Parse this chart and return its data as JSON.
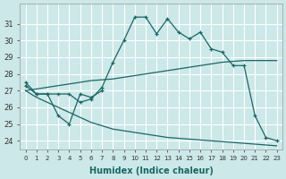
{
  "xlabel": "Humidex (Indice chaleur)",
  "background_color": "#cce8e8",
  "grid_color": "#ffffff",
  "line_color": "#1a6666",
  "ylim": [
    23.5,
    32.2
  ],
  "yticks": [
    24,
    25,
    26,
    27,
    28,
    29,
    30,
    31
  ],
  "xlim": [
    -0.5,
    23.5
  ],
  "line_main_x": [
    0,
    1,
    2,
    3,
    4,
    5,
    6,
    7,
    8,
    9,
    10,
    11,
    12,
    13,
    14,
    15,
    16,
    17,
    18,
    19,
    20,
    21,
    22,
    23
  ],
  "line_main_y": [
    27.5,
    26.8,
    26.8,
    26.8,
    26.8,
    26.3,
    26.5,
    27.2,
    28.7,
    30.0,
    31.4,
    31.4,
    30.4,
    31.3,
    30.5,
    30.1,
    30.5,
    29.5,
    29.3,
    28.5,
    28.5,
    25.5,
    24.2,
    24.0
  ],
  "line_zigzag_x": [
    0,
    1,
    2,
    3,
    4,
    5,
    6,
    7
  ],
  "line_zigzag_y": [
    27.3,
    26.8,
    26.8,
    25.5,
    25.0,
    26.8,
    26.6,
    27.0
  ],
  "line_upper_x": [
    0,
    1,
    2,
    3,
    4,
    5,
    6,
    7,
    8,
    9,
    10,
    11,
    12,
    13,
    14,
    15,
    16,
    17,
    18,
    19,
    20,
    21,
    22,
    23
  ],
  "line_upper_y": [
    27.0,
    27.1,
    27.2,
    27.3,
    27.4,
    27.5,
    27.6,
    27.65,
    27.7,
    27.8,
    27.9,
    28.0,
    28.1,
    28.2,
    28.3,
    28.4,
    28.5,
    28.6,
    28.7,
    28.75,
    28.8,
    28.8,
    28.8,
    28.8
  ],
  "line_lower_x": [
    0,
    1,
    2,
    3,
    4,
    5,
    6,
    7,
    8,
    9,
    10,
    11,
    12,
    13,
    14,
    15,
    16,
    17,
    18,
    19,
    20,
    21,
    22,
    23
  ],
  "line_lower_y": [
    27.0,
    26.6,
    26.3,
    26.0,
    25.7,
    25.4,
    25.1,
    24.9,
    24.7,
    24.6,
    24.5,
    24.4,
    24.3,
    24.2,
    24.15,
    24.1,
    24.05,
    24.0,
    23.95,
    23.9,
    23.85,
    23.8,
    23.75,
    23.7
  ]
}
